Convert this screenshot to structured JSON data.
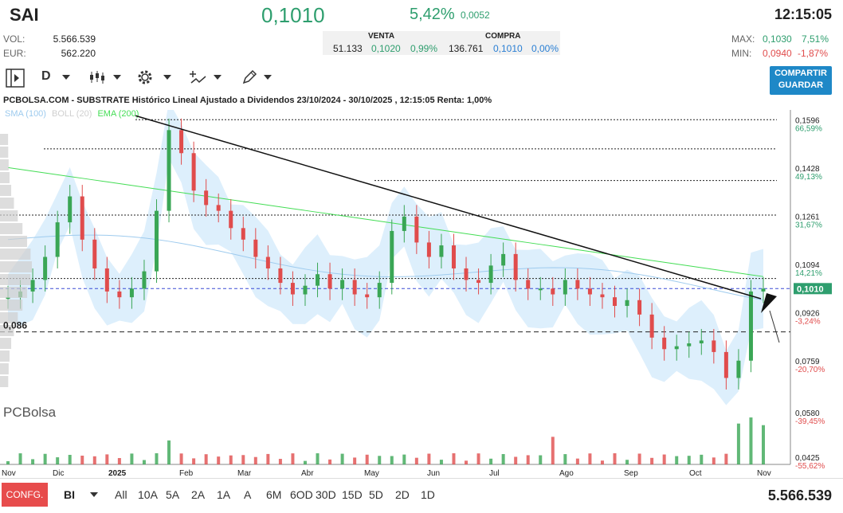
{
  "header": {
    "symbol": "SAI",
    "price": "0,1010",
    "change_pct": "5,42%",
    "change_abs": "0,0052",
    "time": "12:15:05",
    "vol_label": "VOL:",
    "vol_value": "5.566.539",
    "eur_label": "EUR:",
    "eur_value": "562.220",
    "venta_label": "VENTA",
    "venta_qty": "51.133",
    "venta_price": "0,1020",
    "venta_pct": "0,99%",
    "compra_label": "COMPRA",
    "compra_qty": "136.761",
    "compra_price": "0,1010",
    "compra_pct": "0,00%",
    "max_label": "MAX:",
    "max_value": "0,1030",
    "max_pct": "7,51%",
    "min_label": "MIN:",
    "min_value": "0,0940",
    "min_pct": "-1,87%"
  },
  "toolbar": {
    "period": "D",
    "share_line1": "COMPARTIR",
    "share_line2": "GUARDAR"
  },
  "chart_data": {
    "type": "line",
    "title": "PCBOLSA.COM - SUBSTRATE Histórico Lineal Ajustado a Dividendos 23/10/2024 - 30/10/2025 , 12:15:05 Renta: 1,00%",
    "legend": [
      {
        "name": "SMA (100)",
        "color": "#9ecbee"
      },
      {
        "name": "BOLL (20)",
        "color": "#cfcfcf"
      },
      {
        "name": "EMA (200)",
        "color": "#44dd55"
      }
    ],
    "x_tick_labels": [
      "Nov",
      "Dic",
      "2025",
      "Feb",
      "Mar",
      "Abr",
      "May",
      "Jun",
      "Jul",
      "Ago",
      "Sep",
      "Oct",
      "Nov"
    ],
    "y_ticks": [
      {
        "value": "0,1596",
        "pct": "66,59%",
        "color": "#2e9e6e"
      },
      {
        "value": "0,1428",
        "pct": "49,13%",
        "color": "#2e9e6e"
      },
      {
        "value": "0,1261",
        "pct": "31,67%",
        "color": "#2e9e6e"
      },
      {
        "value": "0,1094",
        "pct": "14,21%",
        "color": "#2e9e6e"
      },
      {
        "value": "0,0926",
        "pct": "-3,24%",
        "color": "#e04c4c"
      },
      {
        "value": "0,0759",
        "pct": "-20,70%",
        "color": "#e04c4c"
      },
      {
        "value": "0,0580",
        "pct": "-39,45%",
        "color": "#e04c4c"
      },
      {
        "value": "0,0425",
        "pct": "-55,62%",
        "color": "#e04c4c"
      }
    ],
    "ylim": [
      0.04,
      0.163
    ],
    "last_price_label": "0,1010",
    "support_label": "0,086",
    "support_level": 0.086,
    "resistance_levels": [
      0.1596,
      0.1495,
      0.1385,
      0.1265,
      0.1045
    ],
    "trendline": {
      "start": 0.161,
      "end": 0.0975
    },
    "approx_close_series": [
      0.098,
      0.1,
      0.104,
      0.112,
      0.124,
      0.133,
      0.118,
      0.108,
      0.1,
      0.098,
      0.101,
      0.107,
      0.128,
      0.156,
      0.148,
      0.135,
      0.13,
      0.128,
      0.122,
      0.118,
      0.112,
      0.108,
      0.103,
      0.099,
      0.102,
      0.106,
      0.101,
      0.104,
      0.099,
      0.098,
      0.103,
      0.121,
      0.126,
      0.117,
      0.112,
      0.116,
      0.108,
      0.104,
      0.103,
      0.109,
      0.113,
      0.104,
      0.101,
      0.101,
      0.099,
      0.104,
      0.101,
      0.099,
      0.098,
      0.095,
      0.097,
      0.092,
      0.084,
      0.08,
      0.081,
      0.082,
      0.083,
      0.079,
      0.07,
      0.076,
      0.1,
      0.101
    ]
  },
  "bottom": {
    "config_label": "CONFG.",
    "bi_label": "BI",
    "ranges": [
      "All",
      "10A",
      "5A",
      "2A",
      "1A",
      "A",
      "6M",
      "6OD",
      "30D",
      "15D",
      "5D",
      "2D",
      "1D"
    ],
    "total_volume": "5.566.539"
  },
  "watermark": "PCBolsa"
}
